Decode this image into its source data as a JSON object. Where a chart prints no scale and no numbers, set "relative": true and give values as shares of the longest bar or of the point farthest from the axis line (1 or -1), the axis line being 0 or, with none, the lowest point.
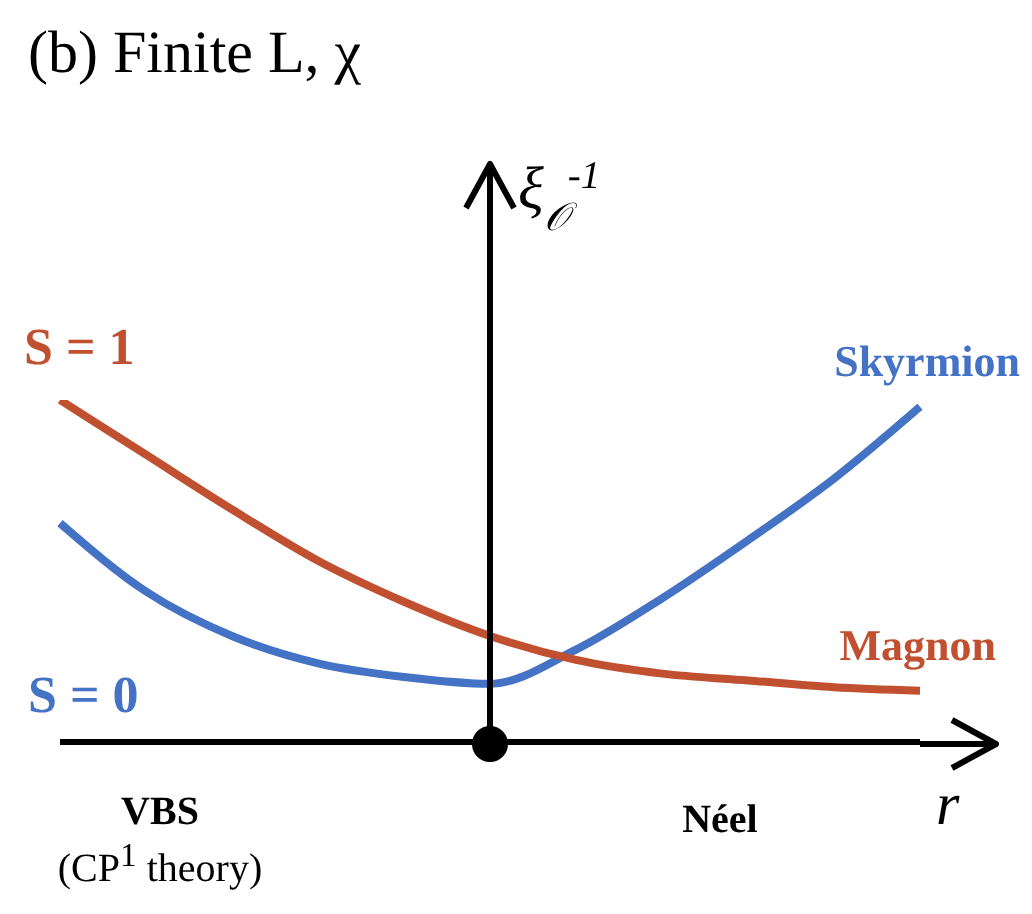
{
  "chart_data": {
    "type": "line",
    "title": "(b) Finite L, χ",
    "xlabel": "r",
    "ylabel": "ξ$_{𝒪}$$^{-1}$",
    "relative": true,
    "marker": "none",
    "categories": [
      null,
      null,
      null,
      null,
      null,
      null,
      null,
      null,
      null,
      null,
      null
    ],
    "series": [
      {
        "name": "Skyrmion",
        "color": "#4472c4",
        "values": [
          0.64,
          0.44,
          0.31,
          0.23,
          0.19,
          0.17,
          0.27,
          0.42,
          0.59,
          0.77,
          0.98
        ]
      },
      {
        "name": "Magnon",
        "color": "#c0502f",
        "values": [
          1,
          0.84,
          0.68,
          0.53,
          0.41,
          0.31,
          0.24,
          0.2,
          0.18,
          0.16,
          0.15
        ]
      }
    ],
    "annotations": [
      "S = 1",
      "S = 0",
      "VBS",
      "(CP$^{1}$ theory)",
      "Néel"
    ]
  }
}
